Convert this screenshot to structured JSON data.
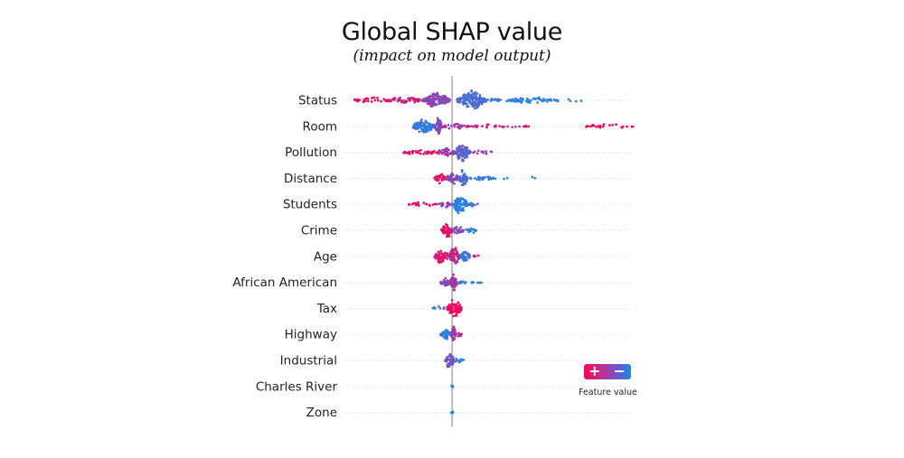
{
  "chart_data": {
    "type": "scatter",
    "subtype": "beeswarm",
    "title": "Global SHAP value",
    "subtitle": "(impact on model output)",
    "xlabel": "",
    "ylabel": "",
    "xlim": [
      -10,
      18.5
    ],
    "baseline": 0,
    "grid": "dotted horizontal per feature",
    "legend": {
      "position": "bottom-right",
      "label": "Feature value",
      "high_symbol": "+",
      "low_symbol": "−",
      "high_color": "#ff0051",
      "low_color": "#1e88e5"
    },
    "features": [
      {
        "name": "Status",
        "segments": [
          {
            "from": -10.0,
            "to": -6.5,
            "density": 0.25,
            "color": 0.05,
            "spread": 0.35
          },
          {
            "from": -6.5,
            "to": -3.0,
            "density": 0.4,
            "color": 0.25,
            "spread": 0.45
          },
          {
            "from": -3.0,
            "to": -0.2,
            "density": 0.9,
            "color": 0.5,
            "spread": 0.9
          },
          {
            "from": 0.5,
            "to": 3.5,
            "density": 1.0,
            "color": 0.78,
            "spread": 1.0
          },
          {
            "from": 3.5,
            "to": 5.0,
            "density": 0.3,
            "color": 0.85,
            "spread": 0.3
          },
          {
            "from": 5.5,
            "to": 11.0,
            "density": 0.35,
            "color": 0.95,
            "spread": 0.35
          },
          {
            "from": 11.5,
            "to": 13.5,
            "density": 0.08,
            "color": 1.0,
            "spread": 0.2
          }
        ]
      },
      {
        "name": "Room",
        "segments": [
          {
            "from": -4.0,
            "to": -1.8,
            "density": 0.9,
            "color": 0.9,
            "spread": 0.8
          },
          {
            "from": -1.8,
            "to": -1.0,
            "density": 1.0,
            "color": 0.55,
            "spread": 1.0
          },
          {
            "from": -1.0,
            "to": 1.5,
            "density": 0.35,
            "color": 0.4,
            "spread": 0.3
          },
          {
            "from": 1.5,
            "to": 8.0,
            "density": 0.2,
            "color": 0.2,
            "spread": 0.2
          },
          {
            "from": 13.5,
            "to": 18.5,
            "density": 0.2,
            "color": 0.02,
            "spread": 0.2
          }
        ]
      },
      {
        "name": "Pollution",
        "segments": [
          {
            "from": -5.0,
            "to": -1.5,
            "density": 0.35,
            "color": 0.08,
            "spread": 0.3
          },
          {
            "from": -1.5,
            "to": 0.3,
            "density": 0.6,
            "color": 0.4,
            "spread": 0.5
          },
          {
            "from": 0.3,
            "to": 1.8,
            "density": 1.0,
            "color": 0.72,
            "spread": 1.0
          },
          {
            "from": 1.8,
            "to": 4.2,
            "density": 0.25,
            "color": 0.45,
            "spread": 0.2
          }
        ]
      },
      {
        "name": "Distance",
        "segments": [
          {
            "from": -1.8,
            "to": -0.6,
            "density": 0.6,
            "color": 0.05,
            "spread": 0.6
          },
          {
            "from": -0.6,
            "to": 0.7,
            "density": 0.9,
            "color": 0.5,
            "spread": 0.7
          },
          {
            "from": 0.7,
            "to": 1.6,
            "density": 1.0,
            "color": 0.8,
            "spread": 1.0
          },
          {
            "from": 1.6,
            "to": 4.5,
            "density": 0.35,
            "color": 0.95,
            "spread": 0.25
          },
          {
            "from": 5.2,
            "to": 6.2,
            "density": 0.1,
            "color": 1.0,
            "spread": 0.15
          },
          {
            "from": 7.8,
            "to": 8.6,
            "density": 0.1,
            "color": 1.0,
            "spread": 0.15
          }
        ]
      },
      {
        "name": "Students",
        "segments": [
          {
            "from": -4.6,
            "to": -1.5,
            "density": 0.3,
            "color": 0.06,
            "spread": 0.2
          },
          {
            "from": -1.5,
            "to": 0.0,
            "density": 0.4,
            "color": 0.45,
            "spread": 0.3
          },
          {
            "from": 0.0,
            "to": 1.6,
            "density": 1.0,
            "color": 0.97,
            "spread": 1.0
          },
          {
            "from": 1.6,
            "to": 2.8,
            "density": 0.35,
            "color": 0.8,
            "spread": 0.25
          }
        ]
      },
      {
        "name": "Crime",
        "segments": [
          {
            "from": -1.1,
            "to": 0.0,
            "density": 1.0,
            "color": 0.08,
            "spread": 1.0
          },
          {
            "from": 0.0,
            "to": 1.2,
            "density": 0.6,
            "color": 0.55,
            "spread": 0.5
          },
          {
            "from": 1.2,
            "to": 2.5,
            "density": 0.4,
            "color": 0.95,
            "spread": 0.35
          }
        ]
      },
      {
        "name": "Age",
        "segments": [
          {
            "from": -1.8,
            "to": -0.3,
            "density": 0.8,
            "color": 0.15,
            "spread": 0.8
          },
          {
            "from": -0.3,
            "to": 0.8,
            "density": 1.0,
            "color": 0.3,
            "spread": 1.0
          },
          {
            "from": 0.8,
            "to": 1.9,
            "density": 0.8,
            "color": 0.85,
            "spread": 0.65
          },
          {
            "from": 1.9,
            "to": 2.7,
            "density": 0.2,
            "color": 0.2,
            "spread": 0.2
          }
        ]
      },
      {
        "name": "African American",
        "segments": [
          {
            "from": -1.2,
            "to": -0.2,
            "density": 0.7,
            "color": 0.5,
            "spread": 0.7
          },
          {
            "from": -0.2,
            "to": 0.5,
            "density": 1.0,
            "color": 0.4,
            "spread": 1.0
          },
          {
            "from": 0.5,
            "to": 1.5,
            "density": 0.45,
            "color": 0.95,
            "spread": 0.3
          },
          {
            "from": 2.0,
            "to": 3.2,
            "density": 0.25,
            "color": 1.0,
            "spread": 0.2
          }
        ]
      },
      {
        "name": "Tax",
        "segments": [
          {
            "from": -2.0,
            "to": -0.7,
            "density": 0.3,
            "color": 0.85,
            "spread": 0.2
          },
          {
            "from": -0.5,
            "to": 1.0,
            "density": 1.0,
            "color": 0.05,
            "spread": 1.0
          }
        ]
      },
      {
        "name": "Highway",
        "segments": [
          {
            "from": -1.2,
            "to": -0.1,
            "density": 0.8,
            "color": 0.92,
            "spread": 0.6
          },
          {
            "from": -0.1,
            "to": 0.4,
            "density": 1.0,
            "color": 0.45,
            "spread": 1.0
          },
          {
            "from": 0.4,
            "to": 1.0,
            "density": 0.4,
            "color": 0.2,
            "spread": 0.3
          }
        ]
      },
      {
        "name": "Industrial",
        "segments": [
          {
            "from": -0.7,
            "to": 0.2,
            "density": 1.0,
            "color": 0.6,
            "spread": 1.0
          },
          {
            "from": 0.2,
            "to": 1.2,
            "density": 0.4,
            "color": 0.92,
            "spread": 0.3
          }
        ]
      },
      {
        "name": "Charles River",
        "segments": [
          {
            "from": -0.1,
            "to": 0.1,
            "density": 1.0,
            "color": 0.97,
            "spread": 0.2
          }
        ]
      },
      {
        "name": "Zone",
        "segments": [
          {
            "from": -0.1,
            "to": 0.1,
            "density": 1.0,
            "color": 0.97,
            "spread": 0.25
          },
          {
            "from": 0.2,
            "to": 0.35,
            "density": 0.05,
            "color": 0.0,
            "spread": 0.1
          }
        ]
      }
    ]
  },
  "colors": {
    "high": "#ff0051",
    "mid": "#8a45b8",
    "low": "#1e88e5",
    "baseline": "#9e9e9e",
    "grid": "#d9d9d9",
    "text": "#222222"
  }
}
